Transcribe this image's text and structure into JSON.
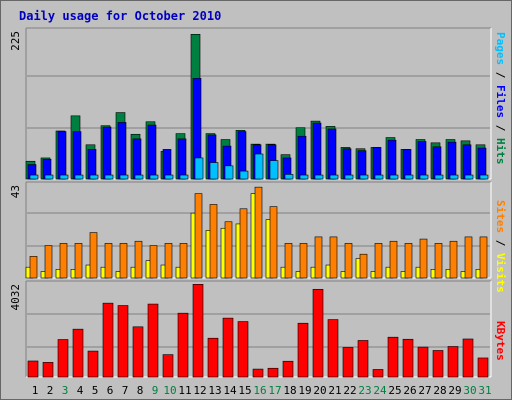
{
  "chart_data": [
    {
      "type": "bar",
      "title": "Daily usage for October 2010",
      "ylim": [
        0,
        225
      ],
      "ymax_label": "225",
      "right_label_parts": [
        {
          "text": "Pages",
          "color": "#00c0ff"
        },
        {
          "text": " / ",
          "color": "#000000"
        },
        {
          "text": "Files",
          "color": "#0000ff"
        },
        {
          "text": " / ",
          "color": "#000000"
        },
        {
          "text": "Hits",
          "color": "#008040"
        }
      ],
      "categories": [
        "1",
        "2",
        "3",
        "4",
        "5",
        "6",
        "7",
        "8",
        "9",
        "10",
        "11",
        "12",
        "13",
        "14",
        "15",
        "16",
        "17",
        "18",
        "19",
        "20",
        "21",
        "22",
        "23",
        "24",
        "25",
        "26",
        "27",
        "28",
        "29",
        "30",
        "31"
      ],
      "series": [
        {
          "name": "Hits",
          "color": "#008040",
          "values": [
            27,
            32,
            73,
            96,
            52,
            81,
            101,
            68,
            87,
            42,
            69,
            220,
            69,
            60,
            74,
            53,
            53,
            37,
            78,
            88,
            80,
            48,
            46,
            48,
            63,
            45,
            60,
            55,
            60,
            58,
            52
          ]
        },
        {
          "name": "Files",
          "color": "#0000ff",
          "values": [
            22,
            30,
            72,
            72,
            45,
            79,
            86,
            61,
            82,
            45,
            61,
            153,
            67,
            50,
            72,
            52,
            52,
            32,
            65,
            85,
            76,
            46,
            43,
            48,
            59,
            45,
            57,
            49,
            56,
            52,
            47
          ]
        },
        {
          "name": "Pages",
          "color": "#00c0ff",
          "values": [
            6,
            6,
            6,
            6,
            6,
            6,
            6,
            6,
            6,
            6,
            6,
            32,
            25,
            20,
            12,
            38,
            28,
            7,
            6,
            6,
            6,
            6,
            6,
            6,
            6,
            6,
            6,
            6,
            6,
            6,
            6
          ]
        }
      ]
    },
    {
      "type": "bar",
      "ylim": [
        0,
        43
      ],
      "ymax_label": "43",
      "right_label_parts": [
        {
          "text": "Sites",
          "color": "#ff8000"
        },
        {
          "text": " / ",
          "color": "#000000"
        },
        {
          "text": "Visits",
          "color": "#ffff00"
        }
      ],
      "categories": [
        "1",
        "2",
        "3",
        "4",
        "5",
        "6",
        "7",
        "8",
        "9",
        "10",
        "11",
        "12",
        "13",
        "14",
        "15",
        "16",
        "17",
        "18",
        "19",
        "20",
        "21",
        "22",
        "23",
        "24",
        "25",
        "26",
        "27",
        "28",
        "29",
        "30",
        "31"
      ],
      "series": [
        {
          "name": "Visits",
          "color": "#ffff00",
          "values": [
            5,
            3,
            4,
            4,
            6,
            5,
            3,
            5,
            8,
            6,
            5,
            30,
            22,
            23,
            25,
            39,
            27,
            5,
            3,
            5,
            6,
            3,
            9,
            3,
            5,
            3,
            5,
            4,
            4,
            3,
            4
          ]
        },
        {
          "name": "Sites",
          "color": "#ff8000",
          "values": [
            10,
            15,
            16,
            16,
            21,
            16,
            16,
            17,
            15,
            16,
            16,
            39,
            34,
            26,
            32,
            42,
            33,
            16,
            16,
            19,
            19,
            16,
            11,
            16,
            17,
            16,
            18,
            16,
            17,
            19,
            19
          ]
        }
      ]
    },
    {
      "type": "bar",
      "ylim": [
        0,
        4032
      ],
      "ymax_label": "4032",
      "right_label_parts": [
        {
          "text": "KBytes",
          "color": "#ff0000"
        }
      ],
      "categories": [
        "1",
        "2",
        "3",
        "4",
        "5",
        "6",
        "7",
        "8",
        "9",
        "10",
        "11",
        "12",
        "13",
        "14",
        "15",
        "16",
        "17",
        "18",
        "19",
        "20",
        "21",
        "22",
        "23",
        "24",
        "25",
        "26",
        "27",
        "28",
        "29",
        "30",
        "31"
      ],
      "series": [
        {
          "name": "KBytes",
          "color": "#ff0000",
          "values": [
            694,
            635,
            1625,
            2074,
            1124,
            3202,
            3099,
            2176,
            3162,
            971,
            2767,
            4019,
            1682,
            2553,
            2404,
            343,
            380,
            684,
            2332,
            3803,
            2490,
            1278,
            1584,
            327,
            1726,
            1637,
            1297,
            1150,
            1323,
            1648,
            825
          ]
        }
      ]
    }
  ],
  "x_labels": [
    {
      "text": "1",
      "color": "#000000"
    },
    {
      "text": "2",
      "color": "#000000"
    },
    {
      "text": "3",
      "color": "#008040"
    },
    {
      "text": "4",
      "color": "#000000"
    },
    {
      "text": "5",
      "color": "#000000"
    },
    {
      "text": "6",
      "color": "#000000"
    },
    {
      "text": "7",
      "color": "#000000"
    },
    {
      "text": "8",
      "color": "#000000"
    },
    {
      "text": "9",
      "color": "#008040"
    },
    {
      "text": "10",
      "color": "#008040"
    },
    {
      "text": "11",
      "color": "#000000"
    },
    {
      "text": "12",
      "color": "#000000"
    },
    {
      "text": "13",
      "color": "#000000"
    },
    {
      "text": "14",
      "color": "#000000"
    },
    {
      "text": "15",
      "color": "#000000"
    },
    {
      "text": "16",
      "color": "#008040"
    },
    {
      "text": "17",
      "color": "#008040"
    },
    {
      "text": "18",
      "color": "#000000"
    },
    {
      "text": "19",
      "color": "#000000"
    },
    {
      "text": "20",
      "color": "#000000"
    },
    {
      "text": "21",
      "color": "#000000"
    },
    {
      "text": "22",
      "color": "#000000"
    },
    {
      "text": "23",
      "color": "#008040"
    },
    {
      "text": "24",
      "color": "#008040"
    },
    {
      "text": "25",
      "color": "#000000"
    },
    {
      "text": "26",
      "color": "#000000"
    },
    {
      "text": "27",
      "color": "#000000"
    },
    {
      "text": "28",
      "color": "#000000"
    },
    {
      "text": "29",
      "color": "#000000"
    },
    {
      "text": "30",
      "color": "#008040"
    },
    {
      "text": "31",
      "color": "#008040"
    }
  ]
}
